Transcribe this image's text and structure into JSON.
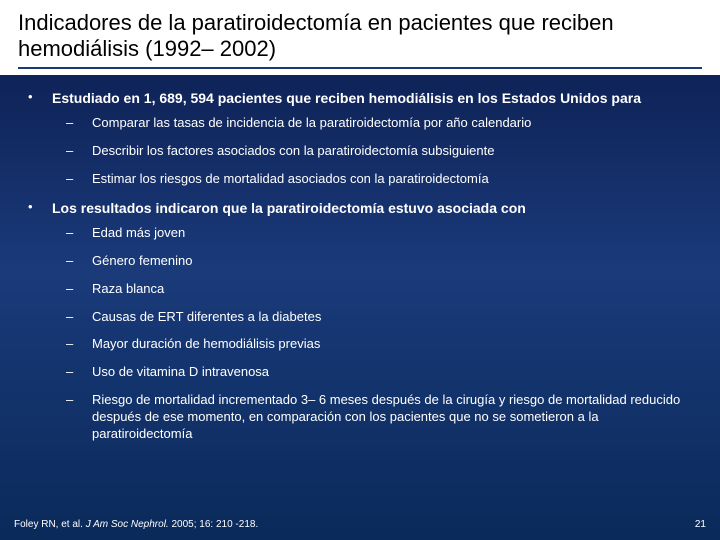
{
  "title": "Indicadores de la paratiroidectomía en pacientes que reciben hemodiálisis (1992– 2002)",
  "b1": "Estudiado en 1, 689, 594 pacientes que reciben hemodiálisis en los Estados Unidos para",
  "b1s1": "Comparar las tasas de incidencia de la paratiroidectomía por año calendario",
  "b1s2": "Describir los factores asociados con la paratiroidectomía subsiguiente",
  "b1s3": "Estimar los riesgos de mortalidad asociados con la paratiroidectomía",
  "b2": "Los resultados indicaron que la paratiroidectomía estuvo asociada con",
  "b2s1": "Edad más joven",
  "b2s2": "Género femenino",
  "b2s3": "Raza blanca",
  "b2s4": "Causas de ERT diferentes a la diabetes",
  "b2s5": "Mayor duración de hemodiálisis previas",
  "b2s6": "Uso de vitamina D intravenosa",
  "b2s7": "Riesgo de mortalidad incrementado 3– 6 meses después de la cirugía y riesgo de mortalidad reducido después de ese momento, en comparación con los pacientes que no se sometieron a la paratiroidectomía",
  "cite_author": "Foley RN, et al. ",
  "cite_journal": "J Am Soc Nephrol. ",
  "cite_rest": "2005; 16: 210 -218.",
  "pagenum": "21"
}
